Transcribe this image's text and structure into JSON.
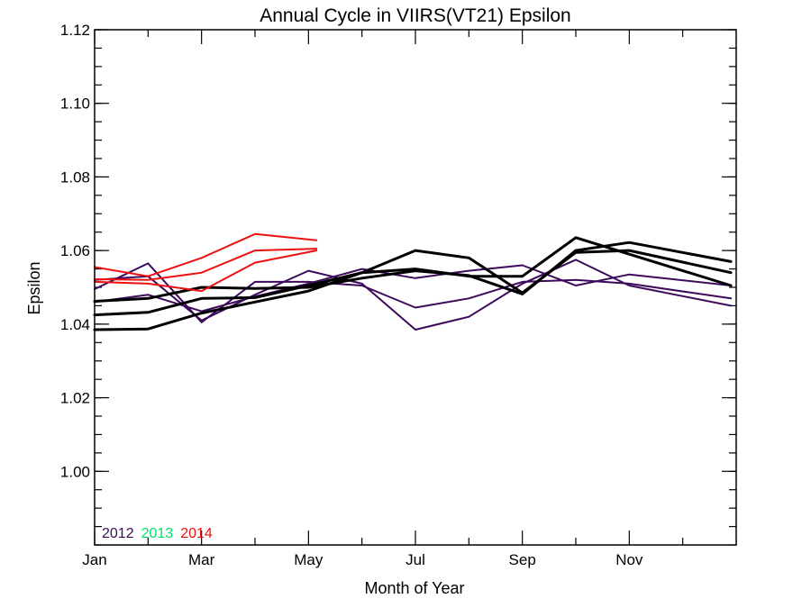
{
  "chart_data": {
    "type": "line",
    "title": "Annual Cycle in VIIRS(VT21) Epsilon",
    "xlabel": "Month of Year",
    "ylabel": "Epsilon",
    "xlim": [
      1,
      13
    ],
    "ylim": [
      0.98,
      1.12
    ],
    "x_ticks": [
      {
        "value": 1,
        "label": "Jan"
      },
      {
        "value": 3,
        "label": "Mar"
      },
      {
        "value": 5,
        "label": "May"
      },
      {
        "value": 7,
        "label": "Jul"
      },
      {
        "value": 9,
        "label": "Sep"
      },
      {
        "value": 11,
        "label": "Nov"
      }
    ],
    "x_minor_ticks": [
      2,
      4,
      6,
      8,
      10,
      12
    ],
    "y_ticks": [
      {
        "value": 1.0,
        "label": "1.00"
      },
      {
        "value": 1.02,
        "label": "1.02"
      },
      {
        "value": 1.04,
        "label": "1.04"
      },
      {
        "value": 1.06,
        "label": "1.06"
      },
      {
        "value": 1.08,
        "label": "1.08"
      },
      {
        "value": 1.1,
        "label": "1.10"
      },
      {
        "value": 1.12,
        "label": "1.12"
      }
    ],
    "y_minor_step": 0.005,
    "grid": false,
    "legend": {
      "placement": "bottom-left",
      "entries": [
        {
          "label": "2012",
          "color": "#3d0a5c"
        },
        {
          "label": "2013",
          "color": "#00e070"
        },
        {
          "label": "2014",
          "color": "#ee1111"
        }
      ]
    },
    "series": [
      {
        "color": "#3d0a5c",
        "width": 2,
        "x": [
          1,
          2,
          3,
          4,
          5,
          6,
          7,
          8,
          9,
          10,
          11,
          12.9
        ],
        "y": [
          1.0495,
          1.0565,
          1.0405,
          1.0515,
          1.0515,
          1.0505,
          1.0445,
          1.047,
          1.0515,
          1.052,
          1.051,
          1.047
        ]
      },
      {
        "color": "#3d0a5c",
        "width": 2,
        "x": [
          1,
          2,
          3,
          4,
          5,
          6,
          7,
          8,
          9,
          10,
          11,
          12.9
        ],
        "y": [
          1.052,
          1.053,
          1.041,
          1.048,
          1.0545,
          1.051,
          1.0385,
          1.042,
          1.051,
          1.0575,
          1.0505,
          1.045
        ]
      },
      {
        "color": "#3d0a5c",
        "width": 2,
        "x": [
          1,
          2,
          3,
          4,
          5,
          6,
          7,
          8,
          9,
          10,
          11,
          12.9
        ],
        "y": [
          1.046,
          1.048,
          1.0435,
          1.0475,
          1.051,
          1.055,
          1.0525,
          1.0545,
          1.056,
          1.0505,
          1.0535,
          1.0505
        ]
      },
      {
        "color": "#000000",
        "width": 3,
        "x": [
          1,
          2,
          3,
          4,
          5,
          6,
          7,
          8,
          9,
          10,
          11,
          12.9
        ],
        "y": [
          1.0385,
          1.0387,
          1.043,
          1.046,
          1.049,
          1.054,
          1.06,
          1.058,
          1.0485,
          1.0595,
          1.06,
          1.054
        ]
      },
      {
        "color": "#000000",
        "width": 3,
        "x": [
          1,
          2,
          3,
          4,
          5,
          6,
          7,
          8,
          9,
          10,
          11,
          12.9
        ],
        "y": [
          1.0425,
          1.0432,
          1.047,
          1.0472,
          1.0505,
          1.054,
          1.055,
          1.053,
          1.053,
          1.0635,
          1.059,
          1.0505
        ]
      },
      {
        "color": "#000000",
        "width": 3,
        "x": [
          1,
          2,
          3,
          4,
          5,
          6,
          7,
          8,
          9,
          10,
          11,
          12.9
        ],
        "y": [
          1.0462,
          1.047,
          1.05,
          1.0497,
          1.05,
          1.0525,
          1.0545,
          1.0532,
          1.0482,
          1.06,
          1.0622,
          1.057
        ]
      },
      {
        "color": "#ee1111",
        "width": 2,
        "x": [
          1,
          2,
          3,
          4,
          5.15
        ],
        "y": [
          1.0555,
          1.053,
          1.058,
          1.0645,
          1.0628
        ]
      },
      {
        "color": "#ee1111",
        "width": 2,
        "x": [
          1,
          2,
          3,
          4,
          5.15
        ],
        "y": [
          1.0522,
          1.052,
          1.054,
          1.06,
          1.0605
        ]
      },
      {
        "color": "#ee1111",
        "width": 2,
        "x": [
          1,
          2,
          3,
          4,
          5.15
        ],
        "y": [
          1.0515,
          1.051,
          1.049,
          1.0567,
          1.06
        ]
      }
    ]
  }
}
